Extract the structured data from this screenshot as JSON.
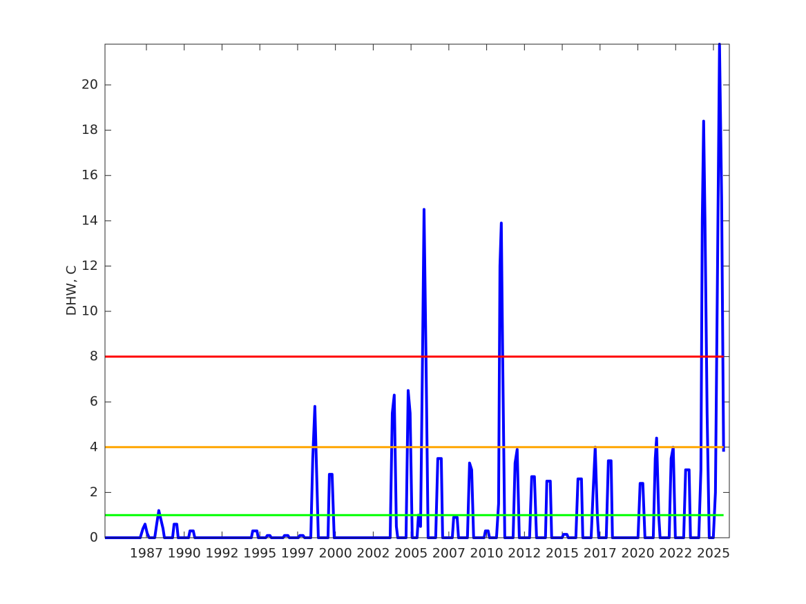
{
  "chart_data": {
    "type": "line",
    "ylabel": "DHW, C",
    "xlim": [
      1984.76,
      2026.05
    ],
    "ylim": [
      0,
      21.8
    ],
    "xticks": [
      {
        "value": 1987.5,
        "label": "1987"
      },
      {
        "value": 1990,
        "label": "1990"
      },
      {
        "value": 1992.5,
        "label": "1992"
      },
      {
        "value": 1995,
        "label": "1995"
      },
      {
        "value": 1997.5,
        "label": "1997"
      },
      {
        "value": 2000,
        "label": "2000"
      },
      {
        "value": 2002.5,
        "label": "2002"
      },
      {
        "value": 2005,
        "label": "2005"
      },
      {
        "value": 2007.5,
        "label": "2007"
      },
      {
        "value": 2010,
        "label": "2010"
      },
      {
        "value": 2012.5,
        "label": "2012"
      },
      {
        "value": 2015,
        "label": "2015"
      },
      {
        "value": 2017.5,
        "label": "2017"
      },
      {
        "value": 2020,
        "label": "2020"
      },
      {
        "value": 2022.5,
        "label": "2022"
      },
      {
        "value": 2025,
        "label": "2025"
      }
    ],
    "yticks": [
      0,
      2,
      4,
      6,
      8,
      10,
      12,
      14,
      16,
      18,
      20
    ],
    "series": [
      {
        "color": "#0000ff",
        "width": 4,
        "x": [
          1984.76,
          1987.09,
          1987.27,
          1987.41,
          1987.55,
          1987.68,
          1988.05,
          1988.18,
          1988.32,
          1988.46,
          1988.6,
          1988.69,
          1989.23,
          1989.33,
          1989.51,
          1989.6,
          1990.29,
          1990.38,
          1990.6,
          1990.7,
          1994.44,
          1994.53,
          1994.81,
          1994.9,
          1995.4,
          1995.49,
          1995.67,
          1995.76,
          1996.54,
          1996.63,
          1996.86,
          1996.95,
          1997.55,
          1997.64,
          1997.86,
          1997.96,
          1998.37,
          1998.5,
          1998.64,
          1998.78,
          1998.87,
          1999.51,
          1999.6,
          1999.78,
          1999.92,
          2003.62,
          2003.76,
          2003.89,
          2004.03,
          2004.12,
          2004.67,
          2004.81,
          2004.94,
          2005.08,
          2005.4,
          2005.49,
          2005.63,
          2005.76,
          2005.86,
          2005.99,
          2006.13,
          2006.63,
          2006.77,
          2007.0,
          2007.09,
          2007.73,
          2007.82,
          2008.05,
          2008.14,
          2008.73,
          2008.87,
          2009.01,
          2009.14,
          2009.83,
          2009.92,
          2010.1,
          2010.19,
          2010.65,
          2010.79,
          2010.88,
          2010.97,
          2011.06,
          2011.2,
          2011.75,
          2011.88,
          2012.02,
          2012.16,
          2012.84,
          2012.98,
          2013.16,
          2013.3,
          2013.89,
          2013.98,
          2014.21,
          2014.3,
          2014.99,
          2015.08,
          2015.31,
          2015.4,
          2015.9,
          2016.04,
          2016.27,
          2016.36,
          2016.91,
          2017.04,
          2017.18,
          2017.32,
          2017.41,
          2017.91,
          2018.05,
          2018.23,
          2018.32,
          2020.01,
          2020.15,
          2020.33,
          2020.47,
          2021.02,
          2021.15,
          2021.24,
          2021.38,
          2021.47,
          2022.07,
          2022.2,
          2022.34,
          2022.48,
          2023.03,
          2023.16,
          2023.39,
          2023.48,
          2024.03,
          2024.17,
          2024.26,
          2024.35,
          2024.44,
          2024.58,
          2024.72,
          2024.99,
          2025.13,
          2025.27,
          2025.4,
          2025.54,
          2025.67
        ],
        "values": [
          0,
          0,
          0.4,
          0.6,
          0.2,
          0,
          0,
          0.6,
          1.2,
          0.8,
          0.4,
          0,
          0,
          0.6,
          0.6,
          0,
          0,
          0.3,
          0.3,
          0,
          0,
          0.3,
          0.3,
          0,
          0,
          0.1,
          0.1,
          0,
          0,
          0.1,
          0.1,
          0,
          0,
          0.1,
          0.1,
          0,
          0,
          3.5,
          5.8,
          2.3,
          0,
          0,
          2.8,
          2.8,
          0,
          0,
          5.5,
          6.3,
          0.5,
          0,
          0,
          6.5,
          5.5,
          0,
          0,
          1.0,
          0.5,
          8,
          14.5,
          8,
          0,
          0,
          3.5,
          3.5,
          0,
          0,
          0.9,
          0.9,
          0,
          0,
          3.3,
          3.0,
          0,
          0,
          0.3,
          0.3,
          0,
          0,
          1.5,
          12,
          13.9,
          8,
          0,
          0,
          3.3,
          3.9,
          0,
          0,
          2.7,
          2.7,
          0,
          0,
          2.5,
          2.5,
          0,
          0,
          0.15,
          0.15,
          0,
          0,
          2.6,
          2.6,
          0,
          0,
          2.0,
          4.0,
          1.0,
          0,
          0,
          3.4,
          3.4,
          0,
          0,
          2.4,
          2.4,
          0,
          0,
          3.5,
          4.4,
          1.0,
          0,
          0,
          3.5,
          4.0,
          0,
          0,
          3.0,
          3.0,
          0,
          0,
          3,
          14,
          18.4,
          14,
          5.5,
          0,
          0,
          2,
          12,
          21.8,
          15,
          3.8
        ]
      },
      {
        "color": "#ff0000",
        "width": 3,
        "x": [
          1984.76,
          2025.67
        ],
        "values": [
          8,
          8
        ]
      },
      {
        "color": "#ffa500",
        "width": 3,
        "x": [
          1984.76,
          2025.67
        ],
        "values": [
          4,
          4
        ]
      },
      {
        "color": "#00ff00",
        "width": 3,
        "x": [
          1984.76,
          2025.67
        ],
        "values": [
          1,
          1
        ]
      }
    ]
  }
}
